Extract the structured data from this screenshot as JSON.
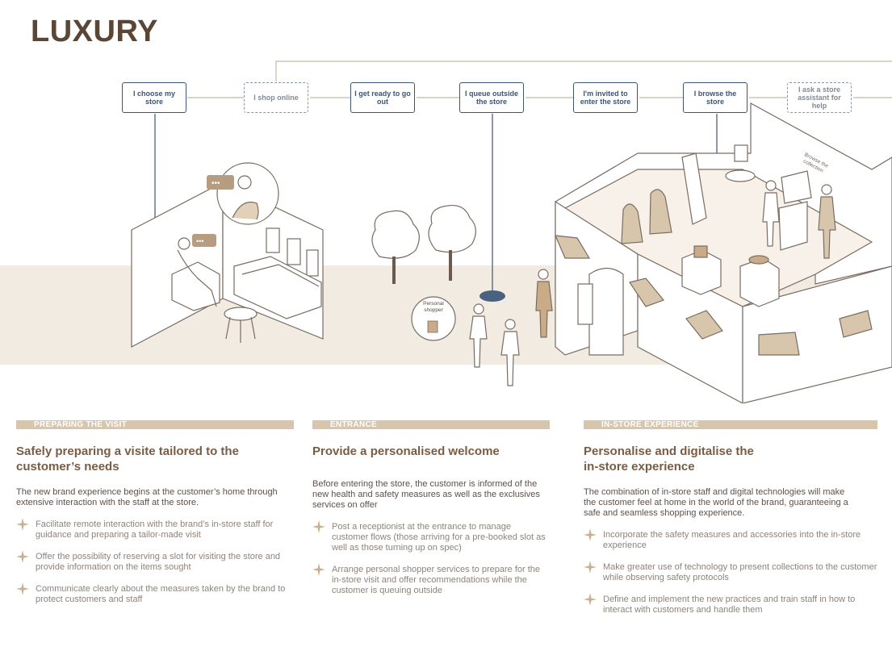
{
  "title": "LUXURY",
  "journey_steps": [
    {
      "label": "I choose my store",
      "style": "solid"
    },
    {
      "label": "I shop online",
      "style": "dashed"
    },
    {
      "label": "I get ready to go out",
      "style": "solid"
    },
    {
      "label": "I queue outside the store",
      "style": "solid"
    },
    {
      "label": "I'm invited to enter the store",
      "style": "solid"
    },
    {
      "label": "I browse the store",
      "style": "solid"
    },
    {
      "label": "I ask a store assistant for help",
      "style": "dashed"
    }
  ],
  "illustration_labels": {
    "personal_shopper": "Personal shopper",
    "browse_collection": "Browse the collection"
  },
  "colors": {
    "accent_navy": "#3e5470",
    "band_beige": "#f2ebe2",
    "bar_tan": "#d8c6ac",
    "heading_brown": "#7a5c43"
  },
  "columns": [
    {
      "section": "PREPARING THE VISIT",
      "heading": "Safely preparing a visite tailored to the customer’s needs",
      "intro": "The new brand experience begins at the customer’s home through extensive interaction with the staff at the store.",
      "bullets": [
        "Facilitate remote interaction with the brand’s in-store staff for guidance and preparing a tailor-made visit",
        "Offer the possibility of reserving a slot for visiting the store and provide information on the items sought",
        "Communicate clearly about the measures taken by the brand to protect customers and staff"
      ]
    },
    {
      "section": "ENTRANCE",
      "heading": "Provide a personalised welcome",
      "intro": "Before entering the store, the customer is informed of the new health and safety measures as well as the exclusives services on offer",
      "bullets": [
        "Post a receptionist at the entrance to manage customer flows (those arriving for a pre-booked slot as well as those turning up on spec)",
        "Arrange personal shopper services to prepare for the in-store visit and offer recommendations while the customer is queuing outside"
      ]
    },
    {
      "section": "IN-STORE EXPERIENCE",
      "heading": "Personalise and digitalise the in-store experience",
      "intro": "The combination of in-store staff and digital technologies will make the customer feel at home in the world of the brand, guaranteeing a safe and seamless shopping experience.",
      "bullets": [
        "Incorporate the safety measures and accessories into the in-store experience",
        "Make greater use of technology to present collections to the customer while observing safety protocols",
        "Define and implement the new practices and train staff in how to interact with customers and handle them"
      ]
    }
  ]
}
